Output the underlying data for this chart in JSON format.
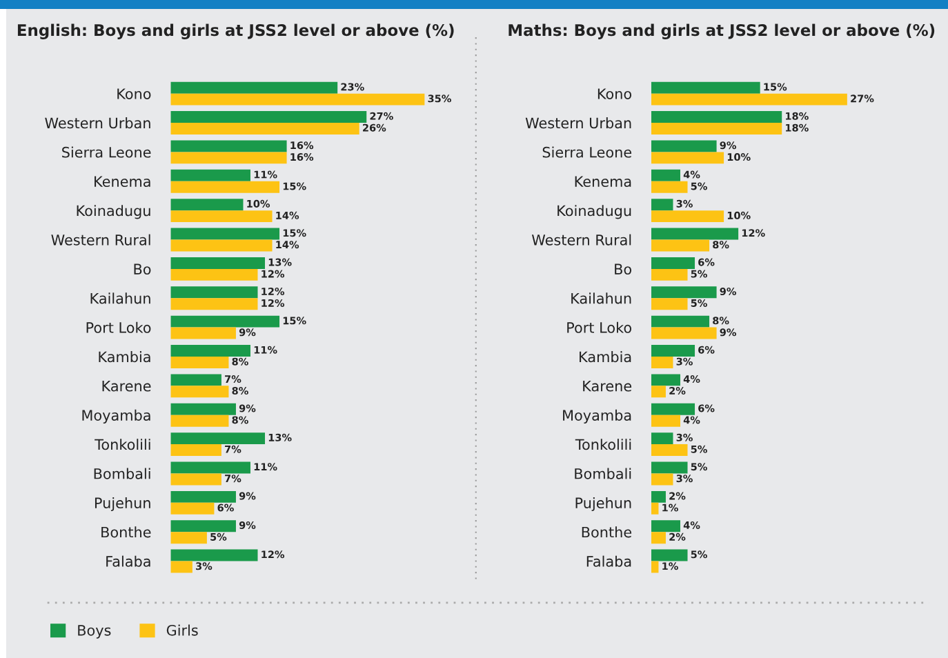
{
  "chart_data": [
    {
      "type": "bar",
      "orientation": "horizontal",
      "title": "English: Boys and girls at JSS2 level or above (%)",
      "legend": "bottom left",
      "grid": false,
      "categories": [
        "Kono",
        "Western Urban",
        "Sierra Leone",
        "Kenema",
        "Koinadugu",
        "Western Rural",
        "Bo",
        "Kailahun",
        "Port Loko",
        "Kambia",
        "Karene",
        "Moyamba",
        "Tonkolili",
        "Bombali",
        "Pujehun",
        "Bonthe",
        "Falaba"
      ],
      "series": [
        {
          "name": "Boys",
          "color": "#1a9a4b",
          "values": [
            23,
            27,
            16,
            11,
            10,
            15,
            13,
            12,
            15,
            11,
            7,
            9,
            13,
            11,
            9,
            9,
            12
          ],
          "value_labels": [
            "23%",
            "27%",
            "16%",
            "11%",
            "10%",
            "15%",
            "13%",
            "12%",
            "15%",
            "11%",
            "7%",
            "9%",
            "13%",
            "11%",
            "9%",
            "9%",
            "12%"
          ]
        },
        {
          "name": "Girls",
          "color": "#fdc314",
          "values": [
            35,
            26,
            16,
            15,
            14,
            14,
            12,
            12,
            9,
            8,
            8,
            8,
            7,
            7,
            6,
            5,
            3
          ],
          "value_labels": [
            "35%",
            "26%",
            "16%",
            "15%",
            "14%",
            "14%",
            "12%",
            "12%",
            "9%",
            "8%",
            "8%",
            "8%",
            "7%",
            "7%",
            "6%",
            "5%",
            "3%"
          ]
        }
      ]
    },
    {
      "type": "bar",
      "orientation": "horizontal",
      "title": "Maths: Boys and girls at JSS2 level or above (%)",
      "grid": false,
      "categories": [
        "Kono",
        "Western Urban",
        "Sierra Leone",
        "Kenema",
        "Koinadugu",
        "Western Rural",
        "Bo",
        "Kailahun",
        "Port Loko",
        "Kambia",
        "Karene",
        "Moyamba",
        "Tonkolili",
        "Bombali",
        "Pujehun",
        "Bonthe",
        "Falaba"
      ],
      "series": [
        {
          "color": "#1a9a4b",
          "values": [
            15,
            18,
            9,
            4,
            3,
            12,
            6,
            9,
            8,
            6,
            4,
            6,
            3,
            5,
            2,
            4,
            5
          ],
          "value_labels": [
            "15%",
            "18%",
            "9%",
            "4%",
            "3%",
            "12%",
            "6%",
            "9%",
            "8%",
            "6%",
            "4%",
            "6%",
            "3%",
            "5%",
            "2%",
            "4%",
            "5%"
          ]
        },
        {
          "color": "#fdc314",
          "values": [
            27,
            18,
            10,
            5,
            10,
            8,
            5,
            5,
            9,
            3,
            2,
            4,
            5,
            3,
            1,
            2,
            1
          ],
          "value_labels": [
            "27%",
            "18%",
            "10%",
            "5%",
            "10%",
            "8%",
            "5%",
            "5%",
            "9%",
            "3%",
            "2%",
            "4%",
            "5%",
            "3%",
            "1%",
            "2%",
            "1%"
          ]
        }
      ]
    }
  ]
}
